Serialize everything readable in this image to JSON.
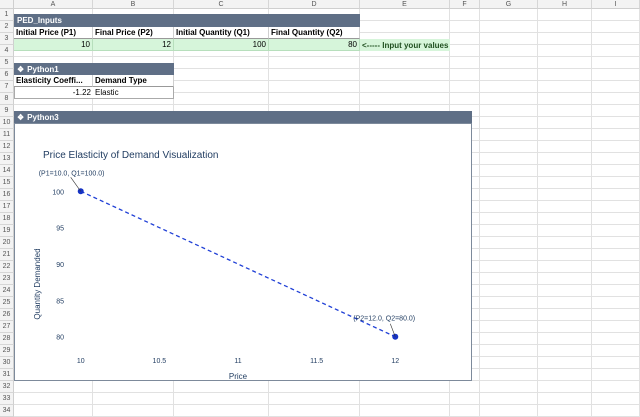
{
  "columns": [
    "A",
    "B",
    "C",
    "D",
    "E",
    "F",
    "G",
    "H",
    "I"
  ],
  "rows": [
    "1",
    "2",
    "3",
    "4",
    "5",
    "6",
    "7",
    "8",
    "9",
    "10",
    "11",
    "12",
    "13",
    "14",
    "15",
    "16",
    "17",
    "18",
    "19",
    "20",
    "21",
    "22",
    "23",
    "24",
    "25",
    "26",
    "27",
    "28",
    "29",
    "30",
    "31",
    "32",
    "33",
    "34"
  ],
  "ped_inputs": {
    "title": "PED_Inputs",
    "headers": [
      "Initial Price (P1)",
      "Final Price (P2)",
      "Initial Quantity (Q1)",
      "Final Quantity (Q2)"
    ],
    "values": [
      "10",
      "12",
      "100",
      "80"
    ],
    "note": "<----- Input your values"
  },
  "python1": {
    "title": "Python1",
    "headers": [
      "Elasticity Coeffi...",
      "Demand Type"
    ],
    "coefficient": "-1.22",
    "demand_type": "Elastic"
  },
  "python3": {
    "title": "Python3"
  },
  "chart_data": {
    "type": "line",
    "title": "Price Elasticity of Demand Visualization",
    "xlabel": "Price",
    "ylabel": "Quantity Demanded",
    "x": [
      10,
      12
    ],
    "y": [
      100,
      80
    ],
    "xlim": [
      9.9,
      12.1
    ],
    "ylim": [
      79,
      101
    ],
    "xticks": [
      "10",
      "10.5",
      "11",
      "11.5",
      "12"
    ],
    "yticks": [
      "80",
      "85",
      "90",
      "95",
      "100"
    ],
    "line_style": "dashed",
    "line_color": "#1f3fd6",
    "point_color": "#1633c4",
    "annotations": [
      "(P1=10.0, Q1=100.0)",
      "(P2=12.0, Q2=80.0)"
    ]
  },
  "colors": {
    "table_header": "#5f6f86",
    "input_fill": "#d6f5da",
    "chart_border": "#7d8a9b"
  }
}
